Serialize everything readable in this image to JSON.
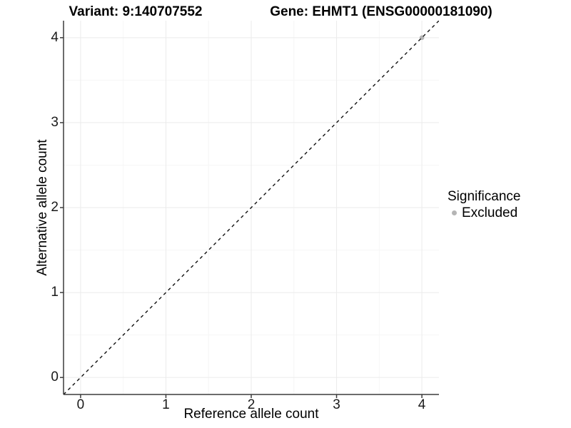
{
  "chart_data": {
    "type": "scatter",
    "title_left": "Variant: 9:140707552",
    "title_right": "Gene: EHMT1 (ENSG00000181090)",
    "xlabel": "Reference allele count",
    "ylabel": "Alternative allele count",
    "xlim": [
      -0.2,
      4.2
    ],
    "ylim": [
      -0.2,
      4.2
    ],
    "x_ticks": [
      0,
      1,
      2,
      3,
      4
    ],
    "y_ticks": [
      0,
      1,
      2,
      3,
      4
    ],
    "x_tick_labels": [
      "0",
      "1",
      "2",
      "3",
      "4"
    ],
    "y_tick_labels": [
      "0",
      "1",
      "2",
      "3",
      "4"
    ],
    "x_minor_ticks": [
      0.5,
      1.5,
      2.5,
      3.5
    ],
    "y_minor_ticks": [
      0.5,
      1.5,
      2.5,
      3.5
    ],
    "grid": true,
    "legend": {
      "title": "Significance",
      "position": "right",
      "items": [
        {
          "label": "Excluded",
          "color": "#b5b5b5"
        }
      ]
    },
    "series": [
      {
        "name": "Excluded",
        "color": "#b5b5b5",
        "points": [
          {
            "x": 4,
            "y": 4
          }
        ]
      }
    ],
    "reference_line": {
      "type": "identity",
      "slope": 1,
      "intercept": 0,
      "style": "dashed",
      "color": "#111111"
    },
    "colors": {
      "background": "#ffffff",
      "grid_major": "#ebebeb",
      "grid_minor": "#f6f6f6",
      "axis": "#3c3c3c",
      "text": "#000000"
    }
  }
}
